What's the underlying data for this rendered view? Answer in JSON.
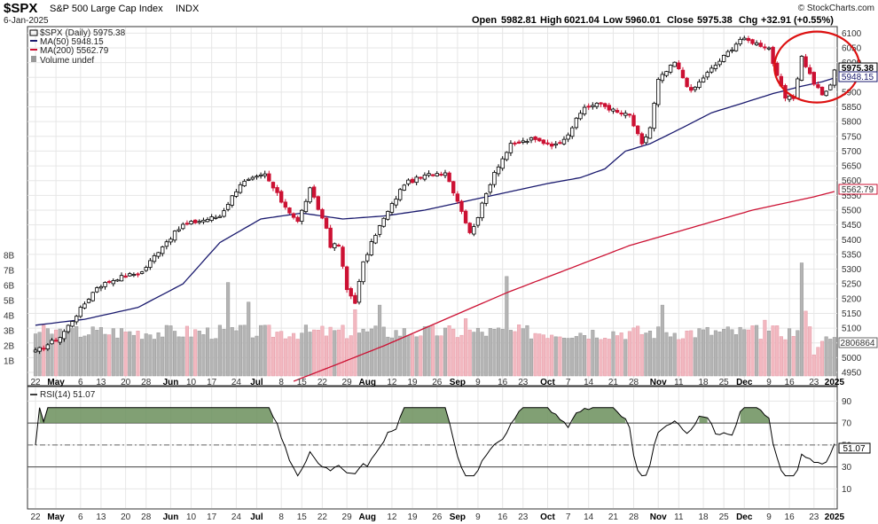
{
  "header": {
    "symbol": "$SPX",
    "name": "S&P 500 Large Cap Index",
    "exchange": "INDX",
    "date": "6-Jan-2025",
    "brand": "© StockCharts.com",
    "quote": {
      "open_label": "Open",
      "open": "5982.81",
      "high_label": "High",
      "high": "6021.04",
      "low_label": "Low",
      "low": "5960.01",
      "close_label": "Close",
      "close": "5975.38",
      "chg_label": "Chg",
      "chg": "+32.91 (+0.55%)"
    }
  },
  "legend": {
    "price": "$SPX (Daily) 5975.38",
    "ma50": "MA(50) 5948.15",
    "ma200": "MA(200) 5562.79",
    "volume": "Volume undef",
    "rsi": "RSI(14) 51.07"
  },
  "badges": {
    "close": "5975.38",
    "ma50": "5948.15",
    "ma200": "5562.79",
    "volume": "2806864",
    "rsi": "51.07"
  },
  "colors": {
    "up": "#000000",
    "down": "#cc1133",
    "ma50": "#1a1a6e",
    "ma200": "#cc1133",
    "vol_up": "#b4b4b4",
    "vol_down": "#f2b8c0",
    "rsi_fill": "#6b8f5c",
    "highlight": "#dd1111"
  },
  "chart_data": [
    {
      "type": "candlestick",
      "title": "$SPX S&P 500 Large Cap Index (Daily)",
      "ylim": [
        4920,
        6110
      ],
      "y_ticks": [
        4950,
        5000,
        5050,
        5100,
        5150,
        5200,
        5250,
        5300,
        5350,
        5400,
        5450,
        5500,
        5550,
        5600,
        5650,
        5700,
        5750,
        5800,
        5850,
        5900,
        5950,
        6000,
        6050,
        6100
      ],
      "x_ticks": [
        "22",
        "May",
        "6",
        "13",
        "20",
        "28",
        "Jun",
        "10",
        "17",
        "24",
        "Jul",
        "8",
        "15",
        "22",
        "29",
        "Aug",
        "12",
        "19",
        "26",
        "Sep",
        "9",
        "16",
        "23",
        "Oct",
        "7",
        "14",
        "21",
        "28",
        "Nov",
        "11",
        "18",
        "25",
        "Dec",
        "9",
        "16",
        "23",
        "2025"
      ],
      "bold_ticks": [
        "May",
        "Jun",
        "Jul",
        "Aug",
        "Sep",
        "Oct",
        "Nov",
        "Dec",
        "2025"
      ],
      "anchors": [
        [
          0,
          5020
        ],
        [
          6,
          5070
        ],
        [
          15,
          5240
        ],
        [
          20,
          5270
        ],
        [
          26,
          5290
        ],
        [
          31,
          5380
        ],
        [
          36,
          5450
        ],
        [
          45,
          5480
        ],
        [
          50,
          5590
        ],
        [
          56,
          5620
        ],
        [
          60,
          5530
        ],
        [
          64,
          5460
        ],
        [
          67,
          5570
        ],
        [
          71,
          5440
        ],
        [
          72,
          5380
        ],
        [
          74,
          5380
        ],
        [
          76,
          5230
        ],
        [
          78,
          5190
        ],
        [
          80,
          5320
        ],
        [
          83,
          5420
        ],
        [
          85,
          5470
        ],
        [
          90,
          5590
        ],
        [
          96,
          5620
        ],
        [
          100,
          5630
        ],
        [
          104,
          5500
        ],
        [
          106,
          5420
        ],
        [
          108,
          5480
        ],
        [
          112,
          5630
        ],
        [
          116,
          5720
        ],
        [
          121,
          5740
        ],
        [
          127,
          5720
        ],
        [
          130,
          5760
        ],
        [
          134,
          5850
        ],
        [
          138,
          5860
        ],
        [
          142,
          5830
        ],
        [
          145,
          5820
        ],
        [
          148,
          5720
        ],
        [
          150,
          5780
        ],
        [
          152,
          5940
        ],
        [
          156,
          6000
        ],
        [
          160,
          5900
        ],
        [
          163,
          5950
        ],
        [
          168,
          6020
        ],
        [
          172,
          6080
        ],
        [
          175,
          6070
        ],
        [
          179,
          6050
        ],
        [
          181,
          5950
        ],
        [
          183,
          5880
        ],
        [
          185,
          5880
        ],
        [
          187,
          6020
        ],
        [
          190,
          5930
        ],
        [
          192,
          5890
        ],
        [
          194,
          5920
        ],
        [
          195,
          5975
        ]
      ],
      "ma50": {
        "name": "MA(50)",
        "anchors": [
          [
            0,
            5110
          ],
          [
            12,
            5130
          ],
          [
            25,
            5170
          ],
          [
            36,
            5250
          ],
          [
            45,
            5390
          ],
          [
            55,
            5470
          ],
          [
            65,
            5490
          ],
          [
            75,
            5470
          ],
          [
            85,
            5480
          ],
          [
            95,
            5500
          ],
          [
            105,
            5530
          ],
          [
            115,
            5560
          ],
          [
            125,
            5590
          ],
          [
            133,
            5610
          ],
          [
            139,
            5640
          ],
          [
            144,
            5700
          ],
          [
            150,
            5725
          ],
          [
            158,
            5780
          ],
          [
            165,
            5830
          ],
          [
            172,
            5860
          ],
          [
            180,
            5895
          ],
          [
            187,
            5920
          ],
          [
            192,
            5935
          ],
          [
            195,
            5948
          ]
        ]
      },
      "ma200": {
        "name": "MA(200)",
        "anchors": [
          [
            63,
            4920
          ],
          [
            75,
            4985
          ],
          [
            85,
            5040
          ],
          [
            100,
            5130
          ],
          [
            115,
            5220
          ],
          [
            130,
            5300
          ],
          [
            145,
            5380
          ],
          [
            160,
            5440
          ],
          [
            175,
            5500
          ],
          [
            190,
            5545
          ],
          [
            195,
            5563
          ]
        ]
      },
      "highlight_circle_over": [
        "16",
        "23",
        "2025"
      ]
    },
    {
      "type": "bar",
      "title": "Volume",
      "y_ticks_labels": [
        "1B",
        "2B",
        "3B",
        "4B",
        "5B",
        "6B",
        "7B",
        "8B"
      ],
      "ylim": [
        0,
        8.8
      ],
      "base_volume_billions": 2.9,
      "spikes": [
        [
          47,
          6.2
        ],
        [
          52,
          4.9
        ],
        [
          78,
          4.4
        ],
        [
          84,
          4.7
        ],
        [
          105,
          3.8
        ],
        [
          115,
          6.6
        ],
        [
          153,
          4.7
        ],
        [
          178,
          3.7
        ],
        [
          187,
          7.5
        ],
        [
          188,
          4.3
        ],
        [
          190,
          1.4
        ],
        [
          191,
          1.9
        ],
        [
          192,
          2.3
        ],
        [
          193,
          2.6
        ]
      ]
    },
    {
      "type": "line",
      "title": "RSI(14)",
      "ylim": [
        -5,
        100
      ],
      "y_ticks": [
        10,
        30,
        50,
        70,
        90
      ],
      "overbought": 70,
      "oversold": 30,
      "last": 51.07
    }
  ]
}
